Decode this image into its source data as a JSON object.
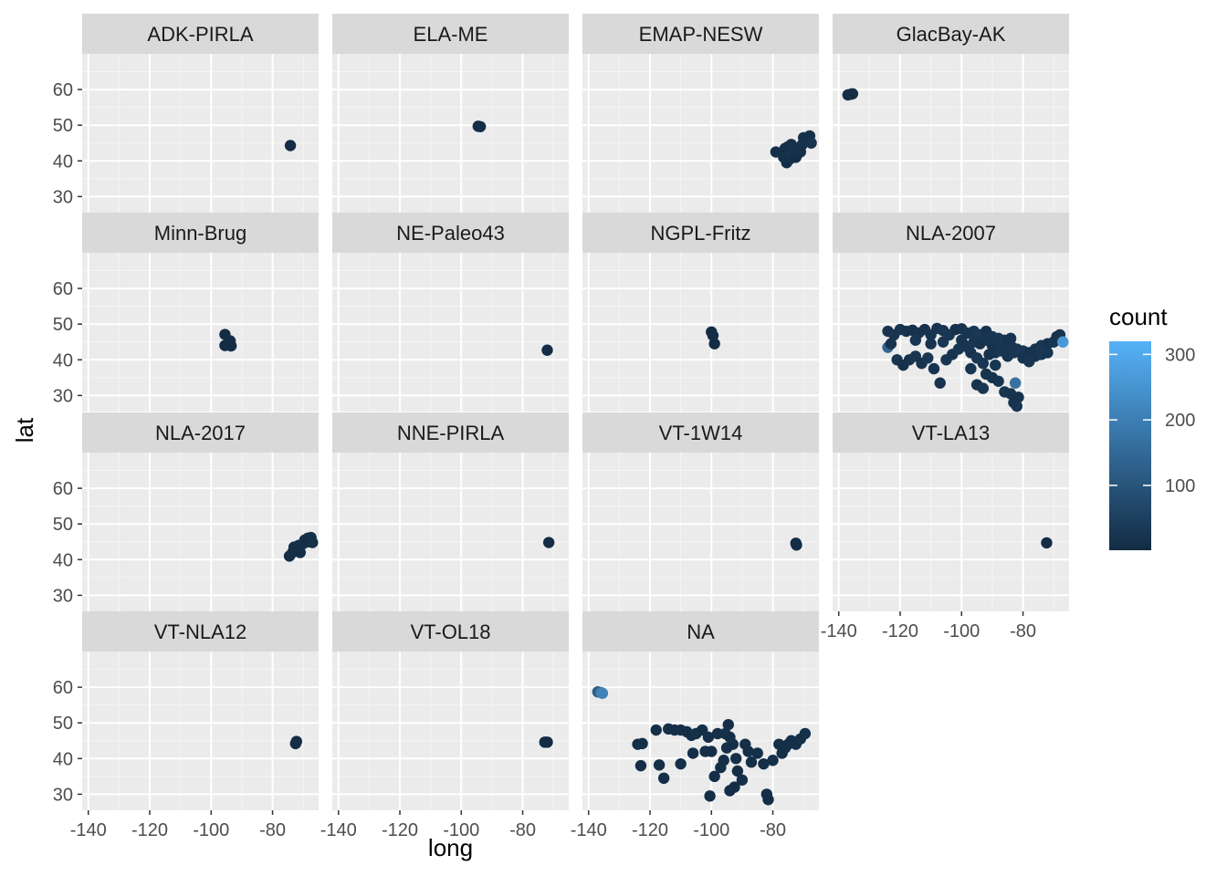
{
  "chart_data": {
    "type": "scatter",
    "facet_wrap": true,
    "xlabel": "long",
    "ylabel": "lat",
    "xlim": [
      -142,
      -65
    ],
    "ylim": [
      25.5,
      70
    ],
    "x_ticks": [
      -140,
      -120,
      -100,
      -80
    ],
    "y_ticks": [
      30,
      40,
      50,
      60
    ],
    "grid": "on",
    "legend": {
      "title": "count",
      "position": "right",
      "type": "colorbar",
      "range": [
        1,
        320
      ],
      "ticks": [
        100,
        200,
        300
      ],
      "low_color": "#132B43",
      "high_color": "#56B1F7"
    },
    "panels": [
      {
        "label": "ADK-PIRLA",
        "points": [
          [
            -74.2,
            44.3,
            5
          ]
        ]
      },
      {
        "label": "ELA-ME",
        "points": [
          [
            -94.5,
            49.7,
            8
          ],
          [
            -93.8,
            49.6,
            6
          ]
        ]
      },
      {
        "label": "EMAP-NESW",
        "points": [
          [
            -79,
            42.5,
            10
          ],
          [
            -77,
            42.2,
            12
          ],
          [
            -76,
            43.5,
            9
          ],
          [
            -75,
            44.0,
            11
          ],
          [
            -74,
            44.6,
            14
          ],
          [
            -73,
            41.5,
            9
          ],
          [
            -72,
            42.0,
            13
          ],
          [
            -71.5,
            43.2,
            10
          ],
          [
            -70.5,
            44.5,
            18
          ],
          [
            -70,
            46.5,
            12
          ],
          [
            -69,
            45.5,
            16
          ],
          [
            -68,
            47.0,
            10
          ],
          [
            -67.5,
            45.0,
            20
          ],
          [
            -75.5,
            39.5,
            8
          ],
          [
            -74.5,
            40.5,
            11
          ],
          [
            -72.5,
            41.0,
            9
          ],
          [
            -76.5,
            41.0,
            12
          ],
          [
            -73.5,
            43.0,
            15
          ],
          [
            -71,
            42.5,
            10
          ]
        ]
      },
      {
        "label": "GlacBay-AK",
        "points": [
          [
            -137,
            58.5,
            8
          ],
          [
            -136,
            58.7,
            10
          ],
          [
            -135.5,
            58.8,
            7
          ]
        ]
      },
      {
        "label": "Minn-Brug",
        "points": [
          [
            -95.5,
            47.1,
            5
          ],
          [
            -94,
            44.8,
            6
          ],
          [
            -93.5,
            43.9,
            4
          ],
          [
            -95.5,
            44.0,
            5
          ],
          [
            -93.8,
            45.3,
            6
          ]
        ]
      },
      {
        "label": "NE-Paleo43",
        "points": [
          [
            -72,
            42.7,
            4
          ]
        ]
      },
      {
        "label": "NGPL-Fritz",
        "points": [
          [
            -100,
            47.8,
            5
          ],
          [
            -99.5,
            46.8,
            6
          ],
          [
            -99,
            44.5,
            4
          ]
        ]
      },
      {
        "label": "NLA-2007",
        "points": [
          [
            -124,
            48,
            20
          ],
          [
            -122,
            47,
            25
          ],
          [
            -120,
            48.5,
            30
          ],
          [
            -118,
            48,
            20
          ],
          [
            -116,
            48.3,
            15
          ],
          [
            -114,
            47.5,
            20
          ],
          [
            -112,
            48.5,
            18
          ],
          [
            -110,
            47,
            22
          ],
          [
            -108,
            48.8,
            20
          ],
          [
            -106,
            48.2,
            25
          ],
          [
            -104,
            47,
            30
          ],
          [
            -102,
            48.5,
            15
          ],
          [
            -100,
            48.7,
            20
          ],
          [
            -98,
            47.5,
            25
          ],
          [
            -96,
            48,
            30
          ],
          [
            -94,
            47,
            35
          ],
          [
            -92,
            48,
            20
          ],
          [
            -90,
            46.5,
            25
          ],
          [
            -88,
            46,
            30
          ],
          [
            -86,
            45.5,
            22
          ],
          [
            -84,
            46,
            20
          ],
          [
            -82,
            43,
            25
          ],
          [
            -80,
            42.5,
            30
          ],
          [
            -78,
            42,
            20
          ],
          [
            -76,
            43,
            25
          ],
          [
            -74,
            44,
            30
          ],
          [
            -72,
            44.5,
            20
          ],
          [
            -70,
            45,
            25
          ],
          [
            -69,
            46.5,
            22
          ],
          [
            -68,
            47,
            20
          ],
          [
            -67,
            45,
            260
          ],
          [
            -124,
            43.5,
            140
          ],
          [
            -123,
            44.5,
            20
          ],
          [
            -121,
            40,
            25
          ],
          [
            -119,
            38.5,
            15
          ],
          [
            -117,
            40,
            20
          ],
          [
            -115,
            41,
            25
          ],
          [
            -113,
            39,
            20
          ],
          [
            -111,
            40.5,
            30
          ],
          [
            -109,
            37.5,
            22
          ],
          [
            -107,
            33.5,
            20
          ],
          [
            -105,
            40,
            25
          ],
          [
            -103,
            41.5,
            20
          ],
          [
            -101,
            43,
            30
          ],
          [
            -99,
            44,
            25
          ],
          [
            -97,
            42,
            20
          ],
          [
            -95,
            40.5,
            30
          ],
          [
            -93,
            39,
            25
          ],
          [
            -91,
            41.5,
            20
          ],
          [
            -89,
            42,
            22
          ],
          [
            -87,
            42.5,
            25
          ],
          [
            -85,
            41,
            20
          ],
          [
            -83,
            42,
            30
          ],
          [
            -95,
            33,
            20
          ],
          [
            -93,
            32,
            25
          ],
          [
            -90,
            35,
            20
          ],
          [
            -88,
            34,
            22
          ],
          [
            -86,
            31,
            25
          ],
          [
            -84,
            30.5,
            20
          ],
          [
            -82.5,
            33.5,
            170
          ],
          [
            -83,
            28,
            20
          ],
          [
            -82,
            27,
            25
          ],
          [
            -81.5,
            29.5,
            20
          ],
          [
            -97,
            37.5,
            25
          ],
          [
            -92,
            36,
            20
          ],
          [
            -89,
            38.5,
            25
          ],
          [
            -110,
            44.5,
            20
          ],
          [
            -115,
            45.5,
            25
          ],
          [
            -106,
            45,
            30
          ],
          [
            -100,
            45.5,
            20
          ],
          [
            -98,
            43.5,
            25
          ],
          [
            -96,
            45,
            30
          ],
          [
            -94,
            44.5,
            20
          ],
          [
            -92,
            45.5,
            25
          ],
          [
            -90,
            44,
            20
          ],
          [
            -88,
            45,
            30
          ],
          [
            -86,
            43.5,
            22
          ],
          [
            -84,
            44,
            25
          ],
          [
            -80,
            40.5,
            20
          ],
          [
            -78,
            39.5,
            25
          ],
          [
            -76,
            41,
            20
          ],
          [
            -74,
            41.5,
            30
          ],
          [
            -72,
            42,
            25
          ]
        ]
      },
      {
        "label": "NLA-2017",
        "points": [
          [
            -74.5,
            41,
            6
          ],
          [
            -73.5,
            42,
            8
          ],
          [
            -73,
            43.5,
            7
          ],
          [
            -72,
            43,
            9
          ],
          [
            -71.5,
            44,
            10
          ],
          [
            -71,
            42,
            8
          ],
          [
            -70,
            44.5,
            12
          ],
          [
            -69.5,
            45.5,
            9
          ],
          [
            -68.5,
            46,
            11
          ],
          [
            -68,
            45,
            8
          ],
          [
            -67.5,
            46.2,
            10
          ],
          [
            -67,
            44.8,
            12
          ]
        ]
      },
      {
        "label": "NNE-PIRLA",
        "points": [
          [
            -71.5,
            44.8,
            5
          ]
        ]
      },
      {
        "label": "VT-1W14",
        "points": [
          [
            -72.5,
            44.6,
            6
          ],
          [
            -72.3,
            44.1,
            5
          ]
        ]
      },
      {
        "label": "VT-LA13",
        "points": [
          [
            -72.3,
            44.7,
            5
          ]
        ]
      },
      {
        "label": "VT-NLA12",
        "points": [
          [
            -72.5,
            44.2,
            6
          ],
          [
            -72.2,
            44.8,
            7
          ]
        ]
      },
      {
        "label": "VT-OL18",
        "points": [
          [
            -72.8,
            44.6,
            5
          ],
          [
            -72,
            44.6,
            6
          ]
        ]
      },
      {
        "label": "NA",
        "points": [
          [
            -137,
            58.7,
            120
          ],
          [
            -136,
            58.5,
            180
          ],
          [
            -135.5,
            58.3,
            210
          ],
          [
            -124,
            44,
            10
          ],
          [
            -122.5,
            44.2,
            12
          ],
          [
            -123,
            38,
            8
          ],
          [
            -118,
            48,
            10
          ],
          [
            -117,
            38.2,
            9
          ],
          [
            -115.5,
            34.5,
            8
          ],
          [
            -114,
            48.3,
            12
          ],
          [
            -112,
            48,
            9
          ],
          [
            -110,
            48,
            11
          ],
          [
            -108,
            47.5,
            10
          ],
          [
            -106.5,
            46.5,
            9
          ],
          [
            -105,
            47,
            12
          ],
          [
            -103,
            48,
            10
          ],
          [
            -102,
            42,
            9
          ],
          [
            -101,
            46,
            11
          ],
          [
            -100.5,
            29.5,
            8
          ],
          [
            -99,
            35,
            9
          ],
          [
            -98,
            47,
            12
          ],
          [
            -97,
            37.5,
            10
          ],
          [
            -96,
            39.5,
            11
          ],
          [
            -95.5,
            47,
            13
          ],
          [
            -94.5,
            49.5,
            10
          ],
          [
            -94,
            46,
            9
          ],
          [
            -93,
            44,
            12
          ],
          [
            -92,
            40,
            11
          ],
          [
            -91.5,
            36.5,
            9
          ],
          [
            -90,
            34,
            10
          ],
          [
            -94,
            31,
            8
          ],
          [
            -92.5,
            32,
            9
          ],
          [
            -88,
            42,
            11
          ],
          [
            -87,
            39,
            10
          ],
          [
            -85,
            41.5,
            12
          ],
          [
            -83,
            38.5,
            9
          ],
          [
            -82,
            30,
            10
          ],
          [
            -81.5,
            28.5,
            8
          ],
          [
            -80,
            39.5,
            11
          ],
          [
            -78,
            44,
            12
          ],
          [
            -77,
            41.5,
            10
          ],
          [
            -76,
            43,
            9
          ],
          [
            -75,
            44,
            11
          ],
          [
            -74,
            45,
            12
          ],
          [
            -72.5,
            44,
            10
          ],
          [
            -71,
            45.5,
            11
          ],
          [
            -69.5,
            47,
            12
          ],
          [
            -95,
            43,
            10
          ],
          [
            -100,
            42,
            9
          ],
          [
            -110,
            38.5,
            10
          ],
          [
            -106,
            41.5,
            11
          ],
          [
            -89,
            44,
            12
          ]
        ]
      }
    ]
  }
}
